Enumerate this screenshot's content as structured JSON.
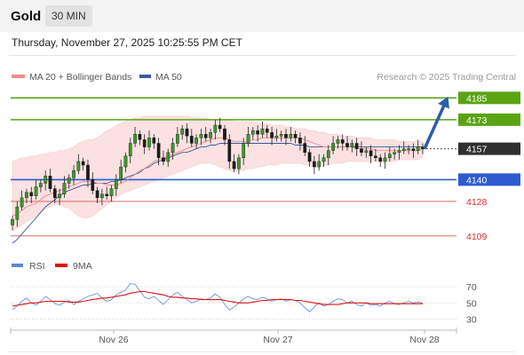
{
  "header": {
    "symbol": "Gold",
    "timeframe": "30 MIN"
  },
  "datetime": "Thursday, November 27, 2025 10:25:55 PM CET",
  "legend": {
    "ma20": "MA 20 + Bollinger Bands",
    "ma50": "MA 50",
    "credit": "Research © 2025 Trading Central",
    "colors": {
      "ma20": "#ee8a8a",
      "ma50": "#3a5a9a"
    }
  },
  "rsi_legend": {
    "rsi": "RSI",
    "ma9": "9MA",
    "colors": {
      "rsi": "#5b86d6",
      "ma9": "#dd1111"
    }
  },
  "chart_data": [
    {
      "type": "candlestick",
      "title": "Gold 30 MIN",
      "x_tick_labels": [
        "Nov 26",
        "Nov 27",
        "Nov 28"
      ],
      "ylim": [
        4105,
        4192
      ],
      "last_price": 4157,
      "levels": [
        {
          "value": 4185,
          "label": "4185",
          "kind": "target",
          "color": "#5aa414"
        },
        {
          "value": 4173,
          "label": "4173",
          "kind": "resistance",
          "color": "#5aa414"
        },
        {
          "value": 4157,
          "label": "4157",
          "kind": "last",
          "color": "#333333"
        },
        {
          "value": 4140,
          "label": "4140",
          "kind": "pivot",
          "color": "#2f5bd0"
        },
        {
          "value": 4128,
          "label": "4128",
          "kind": "support",
          "color": "#e05555"
        },
        {
          "value": 4109,
          "label": "4109",
          "kind": "support",
          "color": "#e05555"
        }
      ],
      "arrow": {
        "from": 4157,
        "to": 4185,
        "color": "#2a5ca8"
      },
      "closes": [
        4118,
        4125,
        4130,
        4133,
        4131,
        4136,
        4138,
        4142,
        4135,
        4130,
        4132,
        4138,
        4141,
        4145,
        4150,
        4148,
        4140,
        4134,
        4130,
        4132,
        4131,
        4135,
        4140,
        4147,
        4153,
        4160,
        4165,
        4162,
        4158,
        4163,
        4160,
        4152,
        4150,
        4155,
        4160,
        4165,
        4168,
        4164,
        4160,
        4163,
        4165,
        4163,
        4166,
        4170,
        4168,
        4162,
        4150,
        4146,
        4152,
        4160,
        4165,
        4167,
        4165,
        4168,
        4166,
        4163,
        4164,
        4165,
        4163,
        4165,
        4163,
        4160,
        4155,
        4150,
        4147,
        4150,
        4152,
        4156,
        4160,
        4162,
        4160,
        4158,
        4160,
        4157,
        4155,
        4156,
        4153,
        4152,
        4150,
        4152,
        4154,
        4155,
        4156,
        4157,
        4157,
        4156,
        4158,
        4157
      ],
      "ma20": [
        4120,
        4121,
        4123,
        4125,
        4126,
        4127,
        4129,
        4131,
        4132,
        4133,
        4134,
        4135,
        4136,
        4137,
        4138,
        4139,
        4139,
        4139,
        4138,
        4138,
        4137,
        4137,
        4137,
        4138,
        4139,
        4141,
        4143,
        4145,
        4146,
        4148,
        4150,
        4151,
        4152,
        4153,
        4154,
        4155,
        4156,
        4157,
        4158,
        4159,
        4160,
        4161,
        4162,
        4163,
        4163,
        4163,
        4162,
        4161,
        4161,
        4161,
        4161,
        4162,
        4162,
        4163,
        4163,
        4163,
        4163,
        4163,
        4163,
        4163,
        4163,
        4163,
        4162,
        4161,
        4160,
        4159,
        4158,
        4158,
        4158,
        4158,
        4158,
        4158,
        4158,
        4157,
        4157,
        4157,
        4157,
        4156,
        4156,
        4156,
        4156,
        4156,
        4156,
        4156,
        4156,
        4156,
        4156,
        4157
      ],
      "bb_upper": [
        4150,
        4151,
        4152,
        4152,
        4153,
        4153,
        4154,
        4154,
        4155,
        4155,
        4156,
        4156,
        4157,
        4158,
        4160,
        4161,
        4162,
        4162,
        4163,
        4165,
        4167,
        4168,
        4170,
        4171,
        4172,
        4173,
        4174,
        4174,
        4175,
        4175,
        4175,
        4175,
        4175,
        4175,
        4175,
        4175,
        4175,
        4175,
        4174,
        4174,
        4174,
        4174,
        4173,
        4173,
        4173,
        4173,
        4173,
        4172,
        4172,
        4172,
        4172,
        4172,
        4171,
        4171,
        4171,
        4170,
        4170,
        4170,
        4169,
        4169,
        4168,
        4168,
        4168,
        4167,
        4167,
        4166,
        4166,
        4165,
        4165,
        4165,
        4164,
        4164,
        4164,
        4163,
        4163,
        4163,
        4163,
        4162,
        4162,
        4162,
        4162,
        4162,
        4161,
        4161,
        4161,
        4161,
        4161,
        4161
      ],
      "bb_lower": [
        4112,
        4113,
        4115,
        4117,
        4118,
        4120,
        4122,
        4124,
        4125,
        4126,
        4126,
        4125,
        4124,
        4122,
        4120,
        4119,
        4119,
        4120,
        4122,
        4124,
        4126,
        4128,
        4130,
        4132,
        4133,
        4134,
        4135,
        4136,
        4137,
        4138,
        4139,
        4140,
        4141,
        4142,
        4143,
        4144,
        4145,
        4146,
        4147,
        4148,
        4149,
        4149,
        4149,
        4148,
        4147,
        4146,
        4145,
        4145,
        4145,
        4145,
        4146,
        4146,
        4147,
        4147,
        4148,
        4148,
        4148,
        4149,
        4149,
        4149,
        4149,
        4149,
        4148,
        4148,
        4147,
        4147,
        4148,
        4148,
        4149,
        4149,
        4149,
        4150,
        4150,
        4150,
        4150,
        4150,
        4150,
        4150,
        4150,
        4150,
        4150,
        4150,
        4151,
        4151,
        4151,
        4151,
        4151,
        4152
      ],
      "ma50": [
        4105,
        4107,
        4110,
        4113,
        4116,
        4119,
        4122,
        4125,
        4127,
        4129,
        4131,
        4133,
        4134,
        4135,
        4136,
        4137,
        4137,
        4138,
        4138,
        4138,
        4138,
        4139,
        4139,
        4140,
        4141,
        4142,
        4143,
        4144,
        4146,
        4147,
        4149,
        4150,
        4151,
        4152,
        4153,
        4154,
        4155,
        4155,
        4156,
        4157,
        4158,
        4158,
        4159,
        4159,
        4160,
        4160,
        4160,
        4160,
        4160,
        4160,
        4160,
        4160,
        4160,
        4160,
        4160,
        4160,
        4160,
        4160,
        4160,
        4160,
        4159,
        4159,
        4159,
        4158,
        4158,
        4158,
        4158,
        4158,
        4158,
        4158,
        4158,
        4158,
        4158,
        4158,
        4158,
        4158,
        4158,
        4158,
        4158,
        4158,
        4158,
        4158,
        4158,
        4158,
        4158,
        4158,
        4158,
        4158
      ]
    },
    {
      "type": "line",
      "title": "RSI",
      "ylim": [
        25,
        80
      ],
      "y_ticks": [
        "70",
        "50",
        "30"
      ],
      "series": [
        {
          "name": "RSI",
          "values": [
            42,
            46,
            52,
            56,
            50,
            47,
            52,
            58,
            54,
            49,
            47,
            51,
            53,
            48,
            52,
            55,
            58,
            60,
            62,
            56,
            52,
            54,
            60,
            63,
            66,
            74,
            73,
            65,
            57,
            55,
            58,
            53,
            48,
            54,
            60,
            63,
            58,
            54,
            50,
            52,
            55,
            54,
            56,
            61,
            57,
            48,
            41,
            45,
            50,
            55,
            58,
            55,
            54,
            57,
            55,
            52,
            54,
            55,
            52,
            54,
            53,
            50,
            44,
            39,
            45,
            50,
            46,
            48,
            52,
            55,
            54,
            50,
            52,
            48,
            46,
            50,
            47,
            48,
            46,
            50,
            52,
            49,
            48,
            50,
            52,
            50,
            51,
            50
          ]
        },
        {
          "name": "9MA",
          "values": [
            46,
            47,
            48,
            49,
            50,
            50,
            51,
            52,
            52,
            52,
            52,
            52,
            51,
            51,
            51,
            52,
            53,
            54,
            55,
            56,
            56,
            57,
            58,
            59,
            60,
            62,
            63,
            64,
            64,
            63,
            62,
            61,
            60,
            58,
            57,
            57,
            56,
            56,
            55,
            55,
            54,
            54,
            54,
            54,
            54,
            53,
            52,
            51,
            50,
            50,
            50,
            51,
            52,
            53,
            53,
            54,
            54,
            54,
            54,
            54,
            53,
            53,
            52,
            51,
            50,
            49,
            48,
            48,
            48,
            48,
            49,
            50,
            50,
            50,
            50,
            50,
            49,
            49,
            49,
            49,
            49,
            49,
            49,
            49,
            49,
            49,
            49,
            49
          ]
        }
      ]
    }
  ]
}
